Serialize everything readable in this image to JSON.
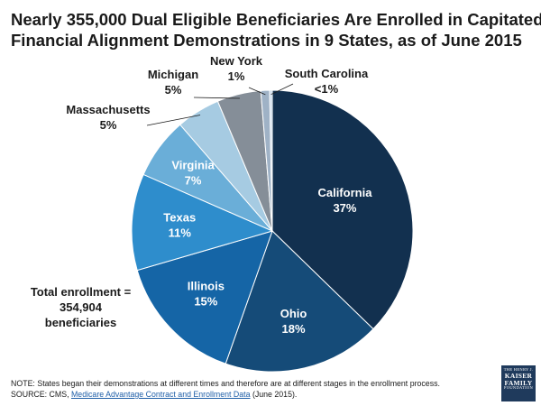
{
  "title_lines": [
    "Nearly 355,000 Dual Eligible Beneficiaries Are Enrolled in Capitated",
    "Financial Alignment Demonstrations in 9 States, as of June 2015"
  ],
  "total_lines": [
    "Total enrollment =",
    "354,904",
    "beneficiaries"
  ],
  "notes": {
    "note": "NOTE:  States began their demonstrations at different times and therefore are at different stages in the enrollment process.",
    "source_prefix": "SOURCE:  CMS, ",
    "source_link": "Medicare Advantage Contract and Enrollment Data",
    "source_suffix": " (June 2015)."
  },
  "logo": {
    "line1": "THE HENRY J.",
    "line2": "KAISER",
    "line3": "FAMILY",
    "line4": "FOUNDATION"
  },
  "chart_data": {
    "type": "pie",
    "title": "Nearly 355,000 Dual Eligible Beneficiaries Are Enrolled in Capitated Financial Alignment Demonstrations in 9 States, as of June 2015",
    "start_angle": "12 o'clock",
    "direction": "clockwise",
    "slices": [
      {
        "name": "California",
        "value": 37,
        "label": "37%",
        "color": "#12304f"
      },
      {
        "name": "Ohio",
        "value": 18,
        "label": "18%",
        "color": "#154b78"
      },
      {
        "name": "Illinois",
        "value": 15,
        "label": "15%",
        "color": "#1565a6"
      },
      {
        "name": "Texas",
        "value": 11,
        "label": "11%",
        "color": "#2e8dcc"
      },
      {
        "name": "Virginia",
        "value": 7,
        "label": "7%",
        "color": "#6aaed8"
      },
      {
        "name": "Massachusetts",
        "value": 5,
        "label": "5%",
        "color": "#a6cbe2"
      },
      {
        "name": "Michigan",
        "value": 5,
        "label": "5%",
        "color": "#858e98"
      },
      {
        "name": "New York",
        "value": 1,
        "label": "1%",
        "color": "#9fb2c6"
      },
      {
        "name": "South Carolina",
        "value": 0.3,
        "label": "<1%",
        "color": "#c9d9ea"
      }
    ]
  }
}
